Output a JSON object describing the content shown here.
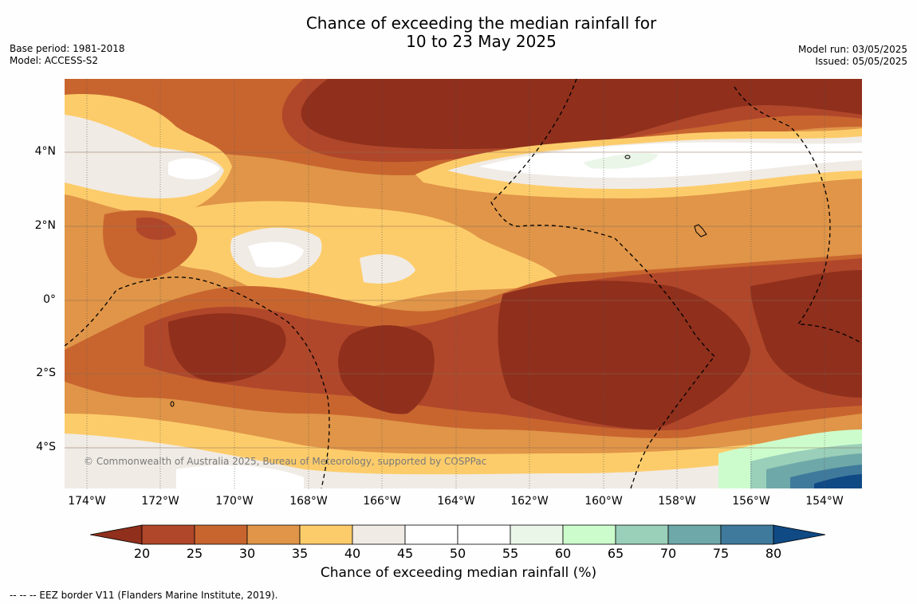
{
  "title_line1": "Chance of exceeding the median rainfall for",
  "title_line2": "10 to 23 May 2025",
  "meta": {
    "base_period": "Base period: 1981-2018",
    "model": "Model: ACCESS-S2",
    "model_run": "Model run: 03/05/2025",
    "issued": "Issued: 05/05/2025"
  },
  "lat_labels": [
    "4°N",
    "2°N",
    "0°",
    "2°S",
    "4°S"
  ],
  "lon_labels": [
    "174°W",
    "172°W",
    "170°W",
    "168°W",
    "166°W",
    "164°W",
    "162°W",
    "160°W",
    "158°W",
    "156°W",
    "154°W"
  ],
  "copyright": "© Commonwealth of Australia 2025, Bureau of Meteorology, supported by COSPPac",
  "colorbar": {
    "ticks": [
      "20",
      "25",
      "30",
      "35",
      "40",
      "45",
      "50",
      "55",
      "60",
      "65",
      "70",
      "75",
      "80"
    ],
    "label": "Chance of exceeding median rainfall (%)",
    "colors": [
      "#8f2f1c",
      "#b0472a",
      "#c8652f",
      "#e09548",
      "#fdcc6a",
      "#f0ebe5",
      "#ffffff",
      "#ffffff",
      "#eaf6e8",
      "#ccfccc",
      "#9acfba",
      "#6ea8a8",
      "#3f7a9c",
      "#0f4a85"
    ]
  },
  "footnote": "--  --  -- EEZ border V11 (Flanders Marine Institute, 2019)."
}
